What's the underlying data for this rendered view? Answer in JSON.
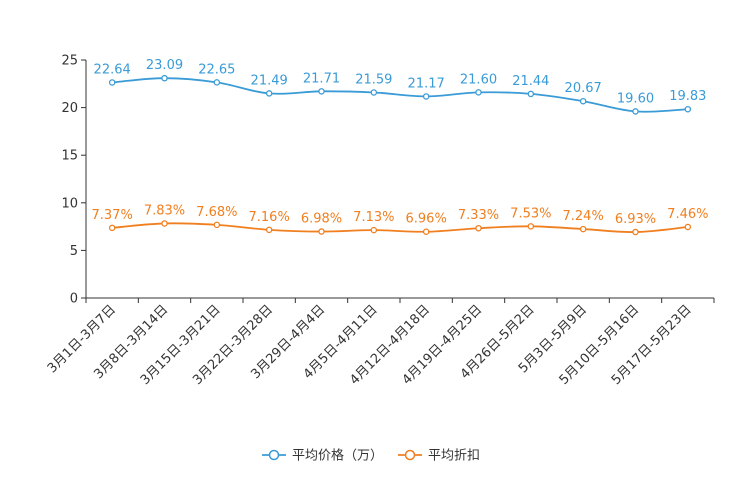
{
  "chart_data": {
    "type": "line",
    "categories": [
      "3月1日-3月7日",
      "3月8日-3月14日",
      "3月15日-3月21日",
      "3月22日-3月28日",
      "3月29日-4月4日",
      "4月5日-4月11日",
      "4月12日-4月18日",
      "4月19日-4月25日",
      "4月26日-5月2日",
      "5月3日-5月9日",
      "5月10日-5月16日",
      "5月17日-5月23日"
    ],
    "series": [
      {
        "name": "平均价格（万）",
        "color": "#3a9bd6",
        "values": [
          22.64,
          23.09,
          22.65,
          21.49,
          21.71,
          21.59,
          21.17,
          21.6,
          21.44,
          20.67,
          19.6,
          19.83
        ],
        "labels": [
          "22.64",
          "23.09",
          "22.65",
          "21.49",
          "21.71",
          "21.59",
          "21.17",
          "21.60",
          "21.44",
          "20.67",
          "19.60",
          "19.83"
        ]
      },
      {
        "name": "平均折扣",
        "color": "#f07f20",
        "values": [
          7.37,
          7.83,
          7.68,
          7.16,
          6.98,
          7.13,
          6.96,
          7.33,
          7.53,
          7.24,
          6.93,
          7.46
        ],
        "labels": [
          "7.37%",
          "7.83%",
          "7.68%",
          "7.16%",
          "6.98%",
          "7.13%",
          "6.96%",
          "7.33%",
          "7.53%",
          "7.24%",
          "6.93%",
          "7.46%"
        ]
      }
    ],
    "ylim": [
      0,
      25
    ],
    "yticks": [
      "0",
      "5",
      "10",
      "15",
      "20",
      "25"
    ],
    "grid": false,
    "legend": "bottom-center"
  }
}
